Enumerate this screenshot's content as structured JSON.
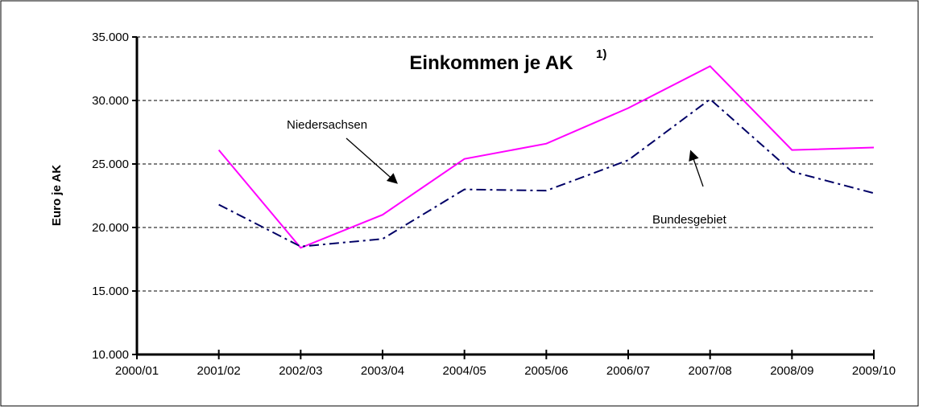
{
  "chart_data": {
    "type": "line",
    "title": "Einkommen je AK",
    "title_superscript": "1)",
    "ylabel": "Euro je AK",
    "categories": [
      "2000/01",
      "2001/02",
      "2002/03",
      "2003/04",
      "2004/05",
      "2005/06",
      "2006/07",
      "2007/08",
      "2008/09",
      "2009/10"
    ],
    "series": [
      {
        "name": "Niedersachsen",
        "color": "#ff00ff",
        "values": [
          null,
          26100,
          18400,
          21000,
          25400,
          26600,
          29400,
          32700,
          26100,
          26300
        ]
      },
      {
        "name": "Bundesgebiet",
        "color": "#000066",
        "values": [
          null,
          21800,
          18500,
          19100,
          23000,
          22900,
          25300,
          30100,
          24400,
          22700
        ]
      }
    ],
    "ylim": [
      10000,
      35000
    ],
    "yticks": [
      {
        "value": 10000,
        "label": "10.000"
      },
      {
        "value": 15000,
        "label": "15.000"
      },
      {
        "value": 20000,
        "label": "20.000"
      },
      {
        "value": 25000,
        "label": "25.000"
      },
      {
        "value": 30000,
        "label": "30.000"
      },
      {
        "value": 35000,
        "label": "35.000"
      }
    ],
    "grid": true
  }
}
